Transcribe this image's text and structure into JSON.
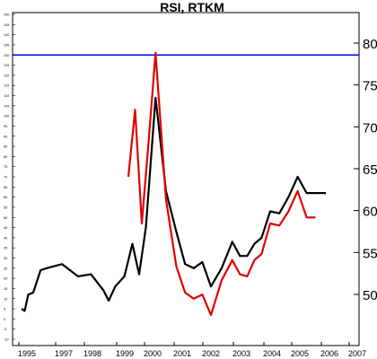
{
  "chart_data": {
    "type": "line",
    "title": "RSI, RTKM",
    "xlabel": "",
    "ylabel": "",
    "x_ticks": [
      "1995",
      "1997",
      "1998",
      "1999",
      "2000",
      "2001",
      "2002",
      "2003",
      "2004",
      "2005",
      "2006",
      "2007"
    ],
    "left_axis": {
      "ylim": [
        -10,
        150
      ],
      "ticks": [
        -10,
        -5,
        0,
        5,
        10,
        15,
        20,
        25,
        30,
        35,
        40,
        45,
        50,
        55,
        60,
        65,
        70,
        75,
        80,
        85,
        90,
        95,
        100,
        105,
        110,
        115,
        120,
        125,
        130,
        135,
        140,
        145,
        150
      ]
    },
    "right_axis": {
      "ylim": [
        45,
        85
      ],
      "ticks": [
        50,
        55,
        60,
        65,
        70,
        75,
        80
      ]
    },
    "reference_line": {
      "axis": "left",
      "value": 130,
      "color": "#0000ff"
    },
    "grid": false,
    "series": [
      {
        "axis": "left",
        "color": "#000000",
        "points": [
          [
            1994.65,
            5
          ],
          [
            1994.9,
            4
          ],
          [
            1995.2,
            12
          ],
          [
            1995.6,
            13
          ],
          [
            1996.2,
            24
          ],
          [
            1996.7,
            25
          ],
          [
            1997.1,
            27
          ],
          [
            1997.5,
            21
          ],
          [
            1997.8,
            22
          ],
          [
            1998.15,
            14
          ],
          [
            1998.35,
            9
          ],
          [
            1998.6,
            16
          ],
          [
            1998.95,
            21
          ],
          [
            1999.25,
            37
          ],
          [
            1999.5,
            22
          ],
          [
            1999.75,
            45
          ],
          [
            2000.1,
            109
          ],
          [
            2000.45,
            63
          ],
          [
            2000.8,
            43
          ],
          [
            2001.1,
            27
          ],
          [
            2001.4,
            25
          ],
          [
            2001.7,
            28
          ],
          [
            2002.0,
            16
          ],
          [
            2002.35,
            25
          ],
          [
            2002.7,
            38
          ],
          [
            2002.95,
            31
          ],
          [
            2003.2,
            31
          ],
          [
            2003.45,
            37
          ],
          [
            2003.7,
            40
          ],
          [
            2004.0,
            53
          ],
          [
            2004.3,
            52
          ],
          [
            2004.6,
            60
          ],
          [
            2004.9,
            70
          ],
          [
            2005.2,
            62
          ],
          [
            2005.6,
            62
          ],
          [
            2005.85,
            62
          ]
        ]
      },
      {
        "axis": "left",
        "color": "#e00000",
        "points": [
          [
            1999.1,
            70
          ],
          [
            1999.35,
            103
          ],
          [
            1999.6,
            47
          ],
          [
            1999.85,
            87
          ],
          [
            2000.1,
            131
          ],
          [
            2000.45,
            59
          ],
          [
            2000.8,
            26
          ],
          [
            2001.1,
            13
          ],
          [
            2001.4,
            10
          ],
          [
            2001.7,
            12
          ],
          [
            2002.0,
            2
          ],
          [
            2002.35,
            19
          ],
          [
            2002.7,
            29
          ],
          [
            2002.95,
            22
          ],
          [
            2003.2,
            21
          ],
          [
            2003.45,
            29
          ],
          [
            2003.7,
            32
          ],
          [
            2004.0,
            47
          ],
          [
            2004.3,
            46
          ],
          [
            2004.6,
            53
          ],
          [
            2004.9,
            63
          ],
          [
            2005.2,
            50
          ],
          [
            2005.5,
            50
          ]
        ]
      }
    ]
  }
}
